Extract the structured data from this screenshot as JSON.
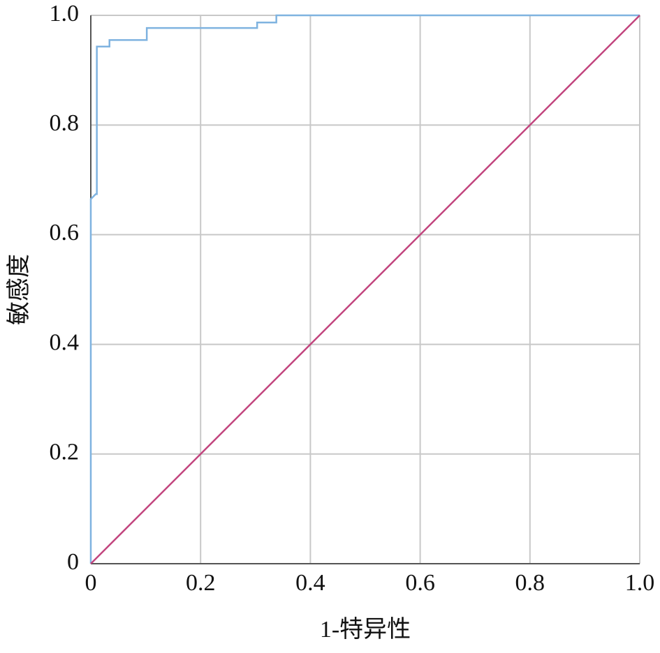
{
  "chart_data": {
    "type": "line",
    "x_label": "1-特异性",
    "y_label": "敏感度",
    "series": [
      {
        "color": "#7fb3e0",
        "x": [
          0,
          0,
          0.009,
          0.011,
          0.011,
          0.034,
          0.034,
          0.102,
          0.102,
          0.303,
          0.303,
          0.338,
          0.338,
          1
        ],
        "values": [
          0,
          0.665,
          0.674,
          0.674,
          0.943,
          0.943,
          0.955,
          0.955,
          0.977,
          0.977,
          0.987,
          0.987,
          1,
          1
        ]
      },
      {
        "color": "#c2457e",
        "x": [
          0,
          1
        ],
        "values": [
          0,
          1
        ]
      }
    ],
    "xlim": [
      0,
      1
    ],
    "ylim": [
      0,
      1
    ],
    "xticks": [
      0,
      0.2,
      0.4,
      0.6,
      0.8,
      {
        "value": 1,
        "label": "1.0"
      }
    ],
    "yticks": [
      0,
      0.2,
      0.4,
      0.6,
      0.8,
      {
        "value": 1,
        "label": "1.0"
      }
    ],
    "grid": true
  }
}
